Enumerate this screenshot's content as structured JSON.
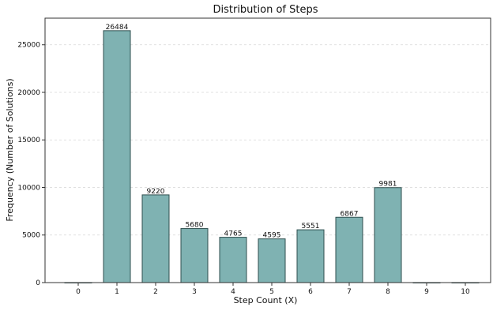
{
  "chart_data": {
    "type": "bar",
    "title": "Distribution of Steps",
    "xlabel": "Step Count (X)",
    "ylabel": "Frequency (Number of Solutions)",
    "categories": [
      "0",
      "1",
      "2",
      "3",
      "4",
      "5",
      "6",
      "7",
      "8",
      "9",
      "10"
    ],
    "values": [
      0,
      26484,
      9220,
      5680,
      4765,
      4595,
      5551,
      6867,
      9981,
      0,
      0
    ],
    "data_labels": [
      "",
      "26484",
      "9220",
      "5680",
      "4765",
      "4595",
      "5551",
      "6867",
      "9981",
      "",
      ""
    ],
    "ylim": [
      0,
      27800
    ],
    "yticks": [
      0,
      5000,
      10000,
      15000,
      20000,
      25000
    ],
    "grid": "horizontal dashed",
    "bar_color": "#7fb2b2",
    "bar_edge_color": "#2f4f4f"
  }
}
